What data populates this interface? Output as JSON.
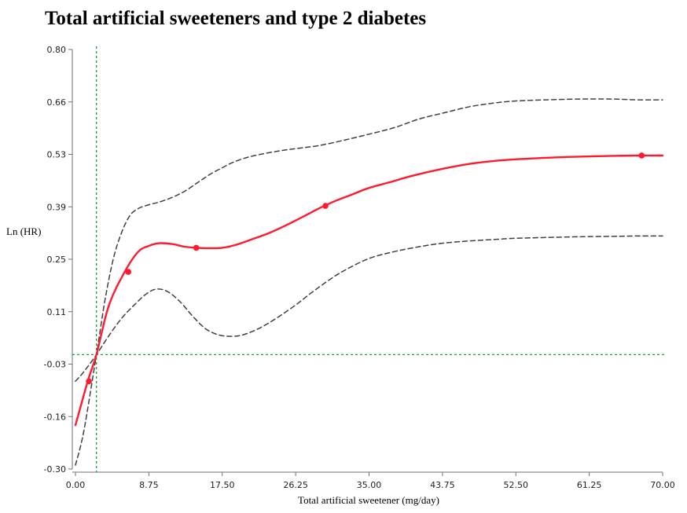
{
  "chart_data": {
    "type": "line",
    "title": "Total artificial sweeteners and type 2 diabetes",
    "xlabel": "Total artificial sweetener (mg/day)",
    "ylabel": "Ln (HR)",
    "xlim": [
      0,
      70
    ],
    "ylim": [
      -0.3,
      0.8
    ],
    "x_ticks": [
      "0.00",
      "8.75",
      "17.50",
      "26.25",
      "35.00",
      "43.75",
      "52.50",
      "61.25",
      "70.00"
    ],
    "y_ticks": [
      "0.80",
      "0.66",
      "0.53",
      "0.39",
      "0.25",
      "0.11",
      "-0.03",
      "-0.16",
      "-0.30"
    ],
    "reference_lines": {
      "x": 2.5,
      "y": 0.0
    },
    "colors": {
      "estimate": "#ff1a2e",
      "ci": "#404040",
      "reference": "#1a9e3a",
      "axis": "#707070"
    },
    "series": [
      {
        "style": "solid",
        "points": [
          [
            0,
            -0.185
          ],
          [
            1.5,
            -0.067
          ],
          [
            2.5,
            0.0
          ],
          [
            4,
            0.13
          ],
          [
            6,
            0.222
          ],
          [
            7.5,
            0.27
          ],
          [
            8.75,
            0.285
          ],
          [
            10,
            0.292
          ],
          [
            11.5,
            0.29
          ],
          [
            13,
            0.283
          ],
          [
            14.4,
            0.28
          ],
          [
            16,
            0.279
          ],
          [
            17.5,
            0.28
          ],
          [
            19,
            0.287
          ],
          [
            21,
            0.302
          ],
          [
            23,
            0.318
          ],
          [
            25,
            0.338
          ],
          [
            27,
            0.36
          ],
          [
            29,
            0.383
          ],
          [
            31,
            0.403
          ],
          [
            33,
            0.42
          ],
          [
            35,
            0.437
          ],
          [
            37.5,
            0.452
          ],
          [
            40,
            0.468
          ],
          [
            43.75,
            0.487
          ],
          [
            47,
            0.5
          ],
          [
            50,
            0.508
          ],
          [
            52.5,
            0.512
          ],
          [
            56,
            0.516
          ],
          [
            60,
            0.519
          ],
          [
            64,
            0.521
          ],
          [
            67,
            0.522
          ],
          [
            70,
            0.522
          ]
        ]
      },
      {
        "style": "dashed",
        "points": [
          [
            0,
            -0.29
          ],
          [
            1,
            -0.2
          ],
          [
            2.5,
            0.0
          ],
          [
            3.5,
            0.14
          ],
          [
            4.5,
            0.25
          ],
          [
            5.5,
            0.32
          ],
          [
            6.5,
            0.365
          ],
          [
            7.5,
            0.383
          ],
          [
            8.75,
            0.393
          ],
          [
            10,
            0.4
          ],
          [
            11.5,
            0.412
          ],
          [
            13,
            0.428
          ],
          [
            14.5,
            0.45
          ],
          [
            16,
            0.472
          ],
          [
            17.5,
            0.49
          ],
          [
            19,
            0.506
          ],
          [
            21,
            0.52
          ],
          [
            24,
            0.533
          ],
          [
            26.25,
            0.54
          ],
          [
            29,
            0.548
          ],
          [
            32,
            0.562
          ],
          [
            35,
            0.578
          ],
          [
            38,
            0.595
          ],
          [
            41,
            0.618
          ],
          [
            43.75,
            0.633
          ],
          [
            47,
            0.65
          ],
          [
            50,
            0.66
          ],
          [
            52.5,
            0.665
          ],
          [
            56,
            0.668
          ],
          [
            60,
            0.67
          ],
          [
            64,
            0.67
          ],
          [
            67,
            0.668
          ],
          [
            70,
            0.668
          ]
        ]
      },
      {
        "style": "dashed",
        "points": [
          [
            0,
            -0.07
          ],
          [
            1,
            -0.045
          ],
          [
            2.5,
            0.0
          ],
          [
            4,
            0.05
          ],
          [
            5.5,
            0.095
          ],
          [
            7,
            0.13
          ],
          [
            8.5,
            0.16
          ],
          [
            9.7,
            0.172
          ],
          [
            11,
            0.165
          ],
          [
            12.5,
            0.138
          ],
          [
            14,
            0.1
          ],
          [
            15.5,
            0.068
          ],
          [
            17,
            0.052
          ],
          [
            18.5,
            0.048
          ],
          [
            20,
            0.052
          ],
          [
            22,
            0.07
          ],
          [
            24,
            0.096
          ],
          [
            26.25,
            0.13
          ],
          [
            28,
            0.16
          ],
          [
            30,
            0.192
          ],
          [
            32,
            0.22
          ],
          [
            35,
            0.252
          ],
          [
            38,
            0.27
          ],
          [
            41,
            0.283
          ],
          [
            43.75,
            0.292
          ],
          [
            47,
            0.298
          ],
          [
            50,
            0.302
          ],
          [
            52.5,
            0.305
          ],
          [
            56,
            0.307
          ],
          [
            60,
            0.309
          ],
          [
            64,
            0.31
          ],
          [
            67,
            0.311
          ],
          [
            70,
            0.311
          ]
        ]
      }
    ],
    "markers": [
      [
        1.6,
        -0.07
      ],
      [
        6.3,
        0.217
      ],
      [
        14.4,
        0.28
      ],
      [
        29.8,
        0.39
      ],
      [
        67.5,
        0.522
      ]
    ]
  }
}
